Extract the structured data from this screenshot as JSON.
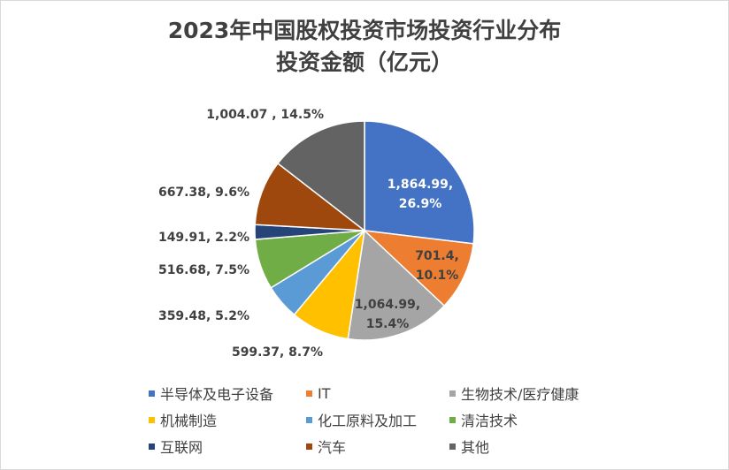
{
  "chart_data": {
    "type": "pie",
    "title": "2023年中国股权投资市场投资行业分布",
    "subtitle": "投资金额（亿元）",
    "legend_position": "bottom",
    "slices": [
      {
        "name": "半导体及电子设备",
        "value": 1864.99,
        "value_label": "1,864.99,",
        "percent_label": "26.9%",
        "color": "#4472C4",
        "label_color": "#ffffff"
      },
      {
        "name": "IT",
        "value": 701.4,
        "value_label": "701.4,",
        "percent_label": "10.1%",
        "color": "#ED7D31",
        "label_color": "#404040"
      },
      {
        "name": "生物技术/医疗健康",
        "value": 1064.99,
        "value_label": "1,064.99,",
        "percent_label": "15.4%",
        "color": "#A5A5A5",
        "label_color": "#404040"
      },
      {
        "name": "机械制造",
        "value": 599.37,
        "value_label": "599.37,",
        "percent_label": "8.7%",
        "color": "#FFC000",
        "label_color": "#404040"
      },
      {
        "name": "化工原料及加工",
        "value": 359.48,
        "value_label": "359.48,",
        "percent_label": "5.2%",
        "color": "#5B9BD5",
        "label_color": "#404040"
      },
      {
        "name": "清洁技术",
        "value": 516.68,
        "value_label": "516.68,",
        "percent_label": "7.5%",
        "color": "#70AD47",
        "label_color": "#404040"
      },
      {
        "name": "互联网",
        "value": 149.91,
        "value_label": "149.91,",
        "percent_label": "2.2%",
        "color": "#264478",
        "label_color": "#404040"
      },
      {
        "name": "汽车",
        "value": 667.38,
        "value_label": "667.38,",
        "percent_label": "9.6%",
        "color": "#9E480E",
        "label_color": "#404040"
      },
      {
        "name": "其他",
        "value": 1004.07,
        "value_label": "1,004.07 ,",
        "percent_label": "14.5%",
        "color": "#636363",
        "label_color": "#404040"
      }
    ]
  }
}
